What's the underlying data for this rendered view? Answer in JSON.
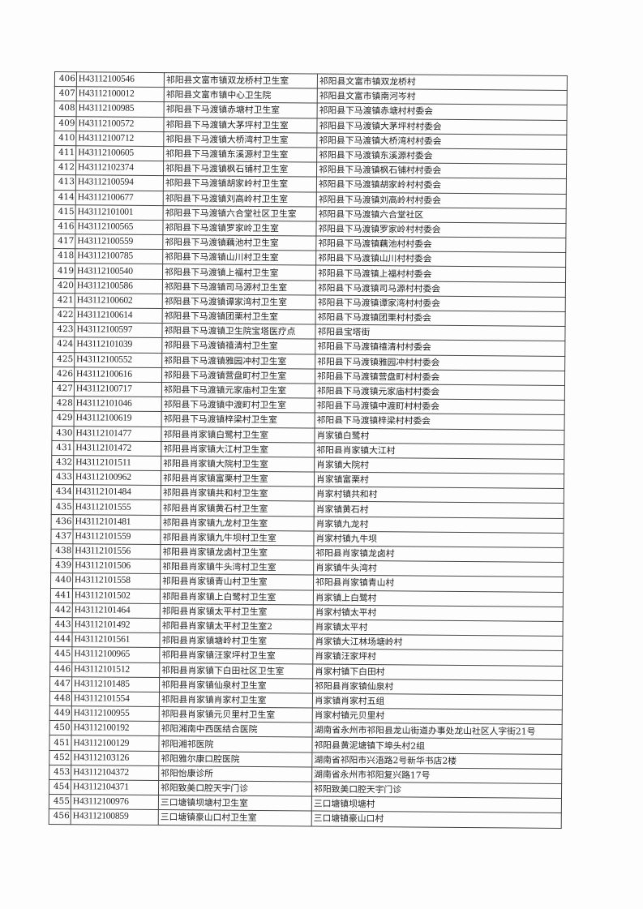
{
  "rows": [
    [
      "406",
      "H43112100546",
      "祁阳县文富市镇双龙桥村卫生室",
      "祁阳县文富市镇双龙桥村"
    ],
    [
      "407",
      "H43112100012",
      "祁阳县文富市镇中心卫生院",
      "祁阳县文富市镇南河岑村"
    ],
    [
      "408",
      "H43112100985",
      "祁阳县下马渡镇赤塘村卫生室",
      "祁阳县下马渡镇赤塘村村委会"
    ],
    [
      "409",
      "H43112100572",
      "祁阳县下马渡镇大茅坪村卫生室",
      "祁阳县下马渡镇大茅坪村村委会"
    ],
    [
      "410",
      "H43112100712",
      "祁阳县下马渡镇大桥湾村卫生室",
      "祁阳县下马渡镇大桥湾村村委会"
    ],
    [
      "411",
      "H43112100605",
      "祁阳县下马渡镇东溪源村卫生室",
      "祁阳县下马渡镇东溪源村委会"
    ],
    [
      "412",
      "H43112102374",
      "祁阳县下马渡镇枫石铺村卫生室",
      "祁阳县下马渡镇枫石铺村村委会"
    ],
    [
      "413",
      "H43112100594",
      "祁阳县下马渡镇胡家岭村卫生室",
      "祁阳县下马渡镇胡家岭村村委会"
    ],
    [
      "414",
      "H43112100677",
      "祁阳县下马渡镇刘高岭村卫生室",
      "祁阳县下马渡镇刘高岭村村委会"
    ],
    [
      "415",
      "H43112101001",
      "祁阳县下马渡镇六合堂社区卫生室",
      "祁阳县下马渡镇六合堂社区"
    ],
    [
      "416",
      "H43112100565",
      "祁阳县下马渡镇罗家岭卫生室",
      "祁阳县下马渡镇罗家岭村村委会"
    ],
    [
      "417",
      "H43112100559",
      "祁阳县下马渡镇藕池村卫生室",
      "祁阳县下马渡镇藕池村村委会"
    ],
    [
      "418",
      "H43112100785",
      "祁阳县下马渡镇山川村卫生室",
      "祁阳县下马渡镇山川村村委会"
    ],
    [
      "419",
      "H43112100540",
      "祁阳县下马渡镇上福村卫生室",
      "祁阳县下马渡镇上福村村委会"
    ],
    [
      "420",
      "H43112100586",
      "祁阳县下马渡镇司马源村卫生室",
      "祁阳县下马渡镇司马源村村委会"
    ],
    [
      "421",
      "H43112100602",
      "祁阳县下马渡镇谭家湾村卫生室",
      "祁阳县下马渡镇谭家湾村村委会"
    ],
    [
      "422",
      "H43112100614",
      "祁阳县下马渡镇团栗村卫生室",
      "祁阳县下马渡镇团栗村村委会"
    ],
    [
      "423",
      "H43112100597",
      "祁阳县下马渡镇卫生院宝塔医疗点",
      "祁阳县宝塔街"
    ],
    [
      "424",
      "H43112101039",
      "祁阳县下马渡镇禧清村卫生室",
      "祁阳县下马渡镇禧清村村委会"
    ],
    [
      "425",
      "H43112100552",
      "祁阳县下马渡镇雅园冲村卫生室",
      "祁阳县下马渡镇雅园冲村村委会"
    ],
    [
      "426",
      "H43112100616",
      "祁阳县下马渡镇营盘町村卫生室",
      "祁阳县下马渡镇营盘町村村委会"
    ],
    [
      "427",
      "H43112100717",
      "祁阳县下马渡镇元家庙村卫生室",
      "祁阳县下马渡镇元家庙村村委会"
    ],
    [
      "428",
      "H43112101046",
      "祁阳县下马渡镇中渡町村卫生室",
      "祁阳县下马渡镇中渡町村村委会"
    ],
    [
      "429",
      "H43112100619",
      "祁阳县下马渡镇梓梁村卫生室",
      "祁阳县下马渡镇梓梁村村委会"
    ],
    [
      "430",
      "H43112101477",
      "祁阳县肖家镇白鹭村卫生室",
      "肖家镇白鹭村"
    ],
    [
      "431",
      "H43112101472",
      "祁阳县肖家镇大江村卫生室",
      "祁阳县肖家镇大江村"
    ],
    [
      "432",
      "H43112101511",
      "祁阳县肖家镇大院村卫生室",
      "肖家镇大院村"
    ],
    [
      "433",
      "H43112100962",
      "祁阳县肖家镇富栗村卫生室",
      "肖家镇富栗村"
    ],
    [
      "434",
      "H43112101484",
      "祁阳县肖家镇共和村卫生室",
      "肖家村镇共和村"
    ],
    [
      "435",
      "H43112101555",
      "祁阳县肖家镇黄石村卫生室",
      "肖家镇黄石村"
    ],
    [
      "436",
      "H43112101481",
      "祁阳县肖家镇九龙村卫生室",
      "肖家镇九龙村"
    ],
    [
      "437",
      "H43112101559",
      "祁阳县肖家镇九牛坝村卫生室",
      "肖家村镇九牛坝"
    ],
    [
      "438",
      "H43112101556",
      "祁阳县肖家镇龙卤村卫生室",
      "祁阳县肖家镇龙卤村"
    ],
    [
      "439",
      "H43112101506",
      "祁阳县肖家镇牛头湾村卫生室",
      "肖家镇牛头湾村"
    ],
    [
      "440",
      "H43112101558",
      "祁阳县肖家镇青山村卫生室",
      "祁阳县肖家镇青山村"
    ],
    [
      "441",
      "H43112101502",
      "祁阳县肖家镇上白鹭村卫生室",
      "肖家镇上白鹭村"
    ],
    [
      "442",
      "H43112101464",
      "祁阳县肖家镇太平村卫生室",
      "肖家村镇太平村"
    ],
    [
      "443",
      "H43112101492",
      "祁阳县肖家镇太平村卫生室2",
      "肖家镇太平村"
    ],
    [
      "444",
      "H43112101561",
      "祁阳县肖家镇塘岭村卫生室",
      "肖家镇大江林场塘岭村"
    ],
    [
      "445",
      "H43112100965",
      "祁阳县肖家镇汪家坪村卫生室",
      "肖家镇汪家坪村"
    ],
    [
      "446",
      "H43112101512",
      "祁阳县肖家镇下白田社区卫生室",
      "肖家村镇下白田村"
    ],
    [
      "447",
      "H43112101485",
      "祁阳县肖家镇仙泉村卫生室",
      "祁阳县肖家镇仙泉村"
    ],
    [
      "448",
      "H43112101554",
      "祁阳县肖家镇肖家村卫生室",
      "肖家镇肖家村五组"
    ],
    [
      "449",
      "H43112100955",
      "祁阳县肖家镇元贝里村卫生室",
      "肖家村镇元贝里村"
    ],
    [
      "450",
      "H43112100192",
      "祁阳湘南中西医结合医院",
      "湖南省永州市祁阳县龙山街道办事处龙山社区人字街21号"
    ],
    [
      "451",
      "H43112100129",
      "祁阳湘祁医院",
      "祁阳县黄泥塘镇下埠头村2组"
    ],
    [
      "452",
      "H43112103126",
      "祁阳雅尔康口腔医院",
      "湖南省祁阳市兴浯路2号新华书店2楼"
    ],
    [
      "453",
      "H43112104372",
      "祁阳怡康诊所",
      "湖南省永州市祁阳复兴路17号"
    ],
    [
      "454",
      "H43112104371",
      "祁阳致美口腔天宇门诊",
      "祁阳致美口腔天宇门诊"
    ],
    [
      "455",
      "H43112100976",
      "三口塘镇坝塘村卫生室",
      "三口塘镇坝塘村"
    ],
    [
      "456",
      "H43112100859",
      "三口塘镇豪山口村卫生室",
      "三口塘镇豪山口村"
    ]
  ]
}
